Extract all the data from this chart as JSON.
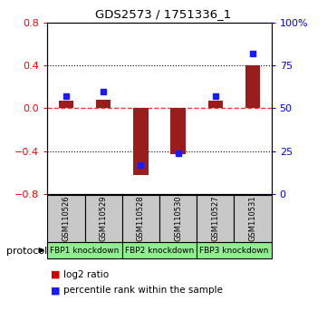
{
  "title": "GDS2573 / 1751336_1",
  "samples": [
    "GSM110526",
    "GSM110529",
    "GSM110528",
    "GSM110530",
    "GSM110527",
    "GSM110531"
  ],
  "log2_ratio": [
    0.07,
    0.08,
    -0.62,
    -0.43,
    0.07,
    0.4
  ],
  "percentile_rank": [
    57,
    60,
    17,
    24,
    57,
    82
  ],
  "ylim_left": [
    -0.8,
    0.8
  ],
  "ylim_right": [
    0,
    100
  ],
  "yticks_left": [
    -0.8,
    -0.4,
    0.0,
    0.4,
    0.8
  ],
  "yticks_right": [
    0,
    25,
    50,
    75,
    100
  ],
  "bar_color_red": "#9B1C1C",
  "marker_color_blue": "#1A1AFF",
  "dashed_zero_color": "#FF3333",
  "bg_sample_boxes": "#C8C8C8",
  "bg_group_boxes": "#90EE90",
  "legend_red_label": "log2 ratio",
  "legend_blue_label": "percentile rank within the sample",
  "bar_width": 0.4,
  "group_labels": [
    "FBP1 knockdown",
    "FBP2 knockdown",
    "FBP3 knockdown"
  ],
  "protocol_label": "protocol"
}
